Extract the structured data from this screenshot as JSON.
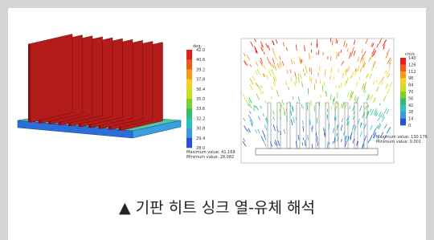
{
  "figures": [
    {
      "colorbar": {
        "unit": "deg.",
        "ticks": [
          "42.0",
          "40.6",
          "39.2",
          "37.8",
          "36.4",
          "35.0",
          "33.6",
          "32.2",
          "30.8",
          "29.4",
          "28.0"
        ]
      },
      "max_label": "Maximum value: 41.168",
      "min_label": "Minimum value: 28.082"
    },
    {
      "colorbar": {
        "unit": "cm/s",
        "ticks": [
          "140",
          "126",
          "112",
          "98",
          "84",
          "70",
          "56",
          "42",
          "28",
          "14",
          "0"
        ]
      },
      "max_label": "Maximum value: 130.176",
      "min_label": "Minimum value: 0.001"
    }
  ],
  "caption": "▲ 기판 히트 싱크 열-유체 해석"
}
